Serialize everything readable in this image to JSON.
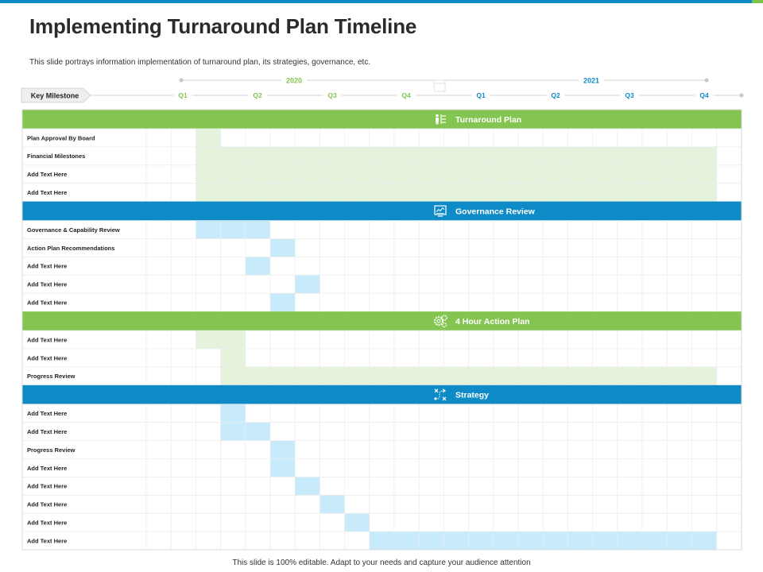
{
  "title": "Implementing Turnaround Plan Timeline",
  "subtitle": "This slide portrays information implementation  of turnaround plan, its strategies, governance, etc.",
  "footer": "This slide is 100% editable.  Adapt to your needs and capture your audience attention",
  "colors": {
    "green": "#84c450",
    "green_fill": "#e5f2dc",
    "blue": "#0e8bc6",
    "blue_fill": "#c7ebfb",
    "year_2020": "#84c450",
    "year_2021": "#0e8bc6"
  },
  "key_milestone": "Key Milestone",
  "years": [
    {
      "label": "2020",
      "color": "green"
    },
    {
      "label": "2021",
      "color": "blue"
    }
  ],
  "quarters": [
    {
      "label": "Q1",
      "year": "2020"
    },
    {
      "label": "Q2",
      "year": "2020"
    },
    {
      "label": "Q3",
      "year": "2020"
    },
    {
      "label": "Q4",
      "year": "2020"
    },
    {
      "label": "Q1",
      "year": "2021"
    },
    {
      "label": "Q2",
      "year": "2021"
    },
    {
      "label": "Q3",
      "year": "2021"
    },
    {
      "label": "Q4",
      "year": "2021"
    }
  ],
  "sections": [
    {
      "title": "Turnaround Plan",
      "color": "green",
      "icon": "people-list-icon",
      "rows": [
        {
          "label": "Plan Approval By Board",
          "bars": [
            [
              2,
              2
            ]
          ]
        },
        {
          "label": "Financial Milestones",
          "bars": [
            [
              2,
              22
            ]
          ]
        },
        {
          "label": "Add Text Here",
          "bars": [
            [
              2,
              22
            ]
          ]
        },
        {
          "label": "Add Text Here",
          "bars": [
            [
              2,
              22
            ]
          ]
        }
      ]
    },
    {
      "title": "Governance Review",
      "color": "blue",
      "icon": "chart-screen-icon",
      "rows": [
        {
          "label": "Governance & Capability  Review",
          "bars": [
            [
              2,
              4
            ]
          ]
        },
        {
          "label": "Action Plan Recommendations",
          "bars": [
            [
              5,
              5
            ]
          ]
        },
        {
          "label": "Add Text Here",
          "bars": [
            [
              4,
              4
            ]
          ]
        },
        {
          "label": "Add Text Here",
          "bars": [
            [
              6,
              6
            ]
          ]
        },
        {
          "label": "Add Text Here",
          "bars": [
            [
              5,
              5
            ]
          ]
        }
      ]
    },
    {
      "title": "4 Hour Action Plan",
      "color": "green",
      "icon": "gears-icon",
      "rows": [
        {
          "label": "Add Text Here",
          "bars": [
            [
              2,
              3
            ]
          ]
        },
        {
          "label": "Add Text Here",
          "bars": [
            [
              3,
              3
            ]
          ]
        },
        {
          "label": "Progress  Review",
          "bars": [
            [
              3,
              22
            ]
          ]
        }
      ]
    },
    {
      "title": "Strategy",
      "color": "blue",
      "icon": "strategy-path-icon",
      "rows": [
        {
          "label": "Add Text Here",
          "bars": [
            [
              3,
              3
            ]
          ]
        },
        {
          "label": "Add Text Here",
          "bars": [
            [
              3,
              4
            ]
          ]
        },
        {
          "label": "Progress  Review",
          "bars": [
            [
              5,
              5
            ]
          ]
        },
        {
          "label": "Add Text Here",
          "bars": [
            [
              5,
              5
            ]
          ]
        },
        {
          "label": "Add Text Here",
          "bars": [
            [
              6,
              6
            ]
          ]
        },
        {
          "label": "Add Text Here",
          "bars": [
            [
              7,
              7
            ]
          ]
        },
        {
          "label": "Add Text Here",
          "bars": [
            [
              8,
              8
            ]
          ]
        },
        {
          "label": "Add Text Here",
          "bars": [
            [
              9,
              22
            ]
          ]
        }
      ]
    }
  ]
}
